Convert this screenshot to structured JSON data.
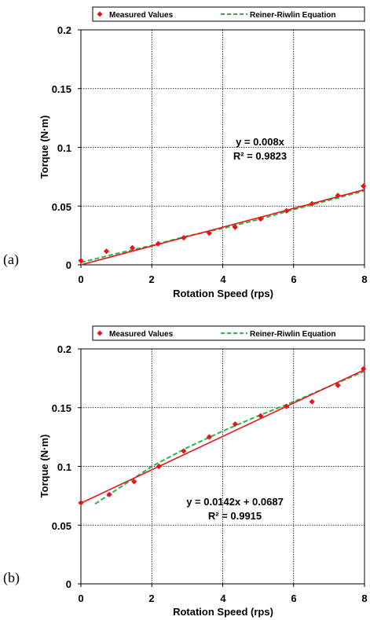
{
  "chart_data": [
    {
      "type": "scatter",
      "panel_label": "(a)",
      "xlabel": "Rotation Speed (rps)",
      "ylabel": "Torque (N·m)",
      "xlim": [
        0,
        8
      ],
      "ylim": [
        0,
        0.2
      ],
      "x_ticks": [
        "0",
        "2",
        "4",
        "6",
        "8"
      ],
      "y_ticks": [
        "0",
        "0.05",
        "0.1",
        "0.15",
        "0.2"
      ],
      "grid": true,
      "legend": {
        "placement": "top",
        "entries": [
          "Measured Values",
          "Reiner-Riwlin Equation"
        ]
      },
      "annotation": {
        "line1": "y = 0.008x",
        "line2": "R² = 0.9823"
      },
      "colors": {
        "measured": "#e8141b",
        "trend": "#e8141b",
        "model": "#2db34a"
      },
      "series": [
        {
          "name": "Measured Values",
          "style": "marker",
          "x": [
            0,
            0.72,
            1.45,
            2.18,
            2.9,
            3.62,
            4.35,
            5.07,
            5.8,
            6.52,
            7.25,
            7.97
          ],
          "y": [
            0.0035,
            0.0115,
            0.0145,
            0.018,
            0.023,
            0.027,
            0.032,
            0.039,
            0.046,
            0.052,
            0.059,
            0.067
          ]
        },
        {
          "name": "Reiner-Riwlin Equation",
          "style": "dashed",
          "x": [
            0,
            1,
            2,
            3,
            4,
            5,
            6,
            7,
            8
          ],
          "y": [
            0.002,
            0.0095,
            0.0165,
            0.0245,
            0.031,
            0.0385,
            0.047,
            0.055,
            0.063
          ]
        },
        {
          "style": "trendline",
          "x": [
            0,
            8
          ],
          "y": [
            0,
            0.064
          ]
        }
      ]
    },
    {
      "type": "scatter",
      "panel_label": "(b)",
      "xlabel": "Rotation Speed (rps)",
      "ylabel": "Torque (N·m)",
      "xlim": [
        0,
        8
      ],
      "ylim": [
        0,
        0.2
      ],
      "x_ticks": [
        "0",
        "2",
        "4",
        "6",
        "8"
      ],
      "y_ticks": [
        "0",
        "0.05",
        "0.1",
        "0.15",
        "0.2"
      ],
      "grid": true,
      "legend": {
        "placement": "top",
        "entries": [
          "Measured Values",
          "Reiner-Riwlin Equation"
        ]
      },
      "annotation": {
        "line1": "y = 0.0142x + 0.0687",
        "line2": "R² = 0.9915"
      },
      "colors": {
        "measured": "#e8141b",
        "trend": "#e8141b",
        "model": "#2db34a"
      },
      "series": [
        {
          "name": "Measured Values",
          "style": "marker",
          "x": [
            0,
            0.8,
            1.5,
            2.2,
            2.9,
            3.62,
            4.35,
            5.07,
            5.8,
            6.52,
            7.25,
            7.97
          ],
          "y": [
            0.069,
            0.076,
            0.087,
            0.1,
            0.113,
            0.125,
            0.136,
            0.143,
            0.151,
            0.155,
            0.169,
            0.183
          ]
        },
        {
          "name": "Reiner-Riwlin Equation",
          "style": "dashed",
          "x": [
            0.4,
            1,
            1.5,
            2,
            3,
            4,
            5,
            6,
            7,
            8
          ],
          "y": [
            0.068,
            0.08,
            0.09,
            0.1,
            0.116,
            0.13,
            0.143,
            0.155,
            0.168,
            0.181
          ]
        },
        {
          "style": "trendline",
          "x": [
            0,
            8
          ],
          "y": [
            0.0687,
            0.1823
          ]
        }
      ]
    }
  ]
}
